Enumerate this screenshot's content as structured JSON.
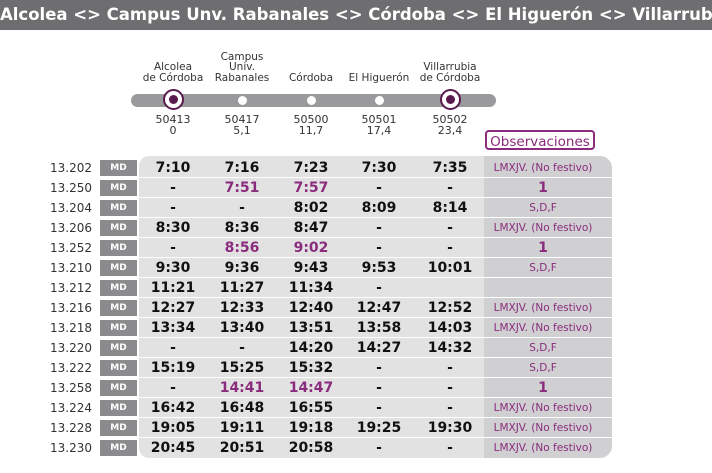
{
  "title": "Alcolea <> Campus Unv. Rabanales <> Córdoba <> El Higuerón <> Villarrubia",
  "stations": [
    {
      "name": "Alcolea\nde Córdoba",
      "code": "50413",
      "km": "0",
      "marker": "terminal"
    },
    {
      "name": "Campus\nUniv.\nRabanales",
      "code": "50417",
      "km": "5,1",
      "marker": "stop"
    },
    {
      "name": "Córdoba",
      "code": "50500",
      "km": "11,7",
      "marker": "stop"
    },
    {
      "name": "El Higuerón",
      "code": "50501",
      "km": "17,4",
      "marker": "stop"
    },
    {
      "name": "Villarrubia\nde Córdoba",
      "code": "50502",
      "km": "23,4",
      "marker": "terminal"
    }
  ],
  "observations_header": "Observaciones",
  "colors": {
    "accent": "#8a2b7c",
    "title_bar": "#6e6e70",
    "badge": "#8b8b8e"
  },
  "rows": [
    {
      "train": "13.202",
      "type": "MD",
      "times": [
        "7:10",
        "7:16",
        "7:23",
        "7:30",
        "7:35"
      ],
      "highlight": [],
      "obs": "LMXJV. (No festivo)"
    },
    {
      "train": "13.250",
      "type": "MD",
      "times": [
        "-",
        "7:51",
        "7:57",
        "-",
        "-"
      ],
      "highlight": [
        1,
        2
      ],
      "obs": "1"
    },
    {
      "train": "13.204",
      "type": "MD",
      "times": [
        "-",
        "-",
        "8:02",
        "8:09",
        "8:14"
      ],
      "highlight": [],
      "obs": "S,D,F"
    },
    {
      "train": "13.206",
      "type": "MD",
      "times": [
        "8:30",
        "8:36",
        "8:47",
        "-",
        "-"
      ],
      "highlight": [],
      "obs": "LMXJV. (No festivo)"
    },
    {
      "train": "13.252",
      "type": "MD",
      "times": [
        "-",
        "8:56",
        "9:02",
        "-",
        "-"
      ],
      "highlight": [
        1,
        2
      ],
      "obs": "1"
    },
    {
      "train": "13.210",
      "type": "MD",
      "times": [
        "9:30",
        "9:36",
        "9:43",
        "9:53",
        "10:01"
      ],
      "highlight": [],
      "obs": "S,D,F"
    },
    {
      "train": "13.212",
      "type": "MD",
      "times": [
        "11:21",
        "11:27",
        "11:34",
        "-",
        ""
      ],
      "highlight": [],
      "obs": ""
    },
    {
      "train": "13.216",
      "type": "MD",
      "times": [
        "12:27",
        "12:33",
        "12:40",
        "12:47",
        "12:52"
      ],
      "highlight": [],
      "obs": "LMXJV. (No festivo)"
    },
    {
      "train": "13.218",
      "type": "MD",
      "times": [
        "13:34",
        "13:40",
        "13:51",
        "13:58",
        "14:03"
      ],
      "highlight": [],
      "obs": "LMXJV. (No festivo)"
    },
    {
      "train": "13.220",
      "type": "MD",
      "times": [
        "-",
        "-",
        "14:20",
        "14:27",
        "14:32"
      ],
      "highlight": [],
      "obs": "S,D,F"
    },
    {
      "train": "13.222",
      "type": "MD",
      "times": [
        "15:19",
        "15:25",
        "15:32",
        "-",
        "-"
      ],
      "highlight": [],
      "obs": "S,D,F"
    },
    {
      "train": "13.258",
      "type": "MD",
      "times": [
        "-",
        "14:41",
        "14:47",
        "-",
        "-"
      ],
      "highlight": [
        1,
        2
      ],
      "obs": "1"
    },
    {
      "train": "13.224",
      "type": "MD",
      "times": [
        "16:42",
        "16:48",
        "16:55",
        "-",
        "-"
      ],
      "highlight": [],
      "obs": "LMXJV. (No festivo)"
    },
    {
      "train": "13.228",
      "type": "MD",
      "times": [
        "19:05",
        "19:11",
        "19:18",
        "19:25",
        "19:30"
      ],
      "highlight": [],
      "obs": "LMXJV. (No festivo)"
    },
    {
      "train": "13.230",
      "type": "MD",
      "times": [
        "20:45",
        "20:51",
        "20:58",
        "-",
        "-"
      ],
      "highlight": [],
      "obs": "LMXJV. (No festivo)"
    }
  ]
}
